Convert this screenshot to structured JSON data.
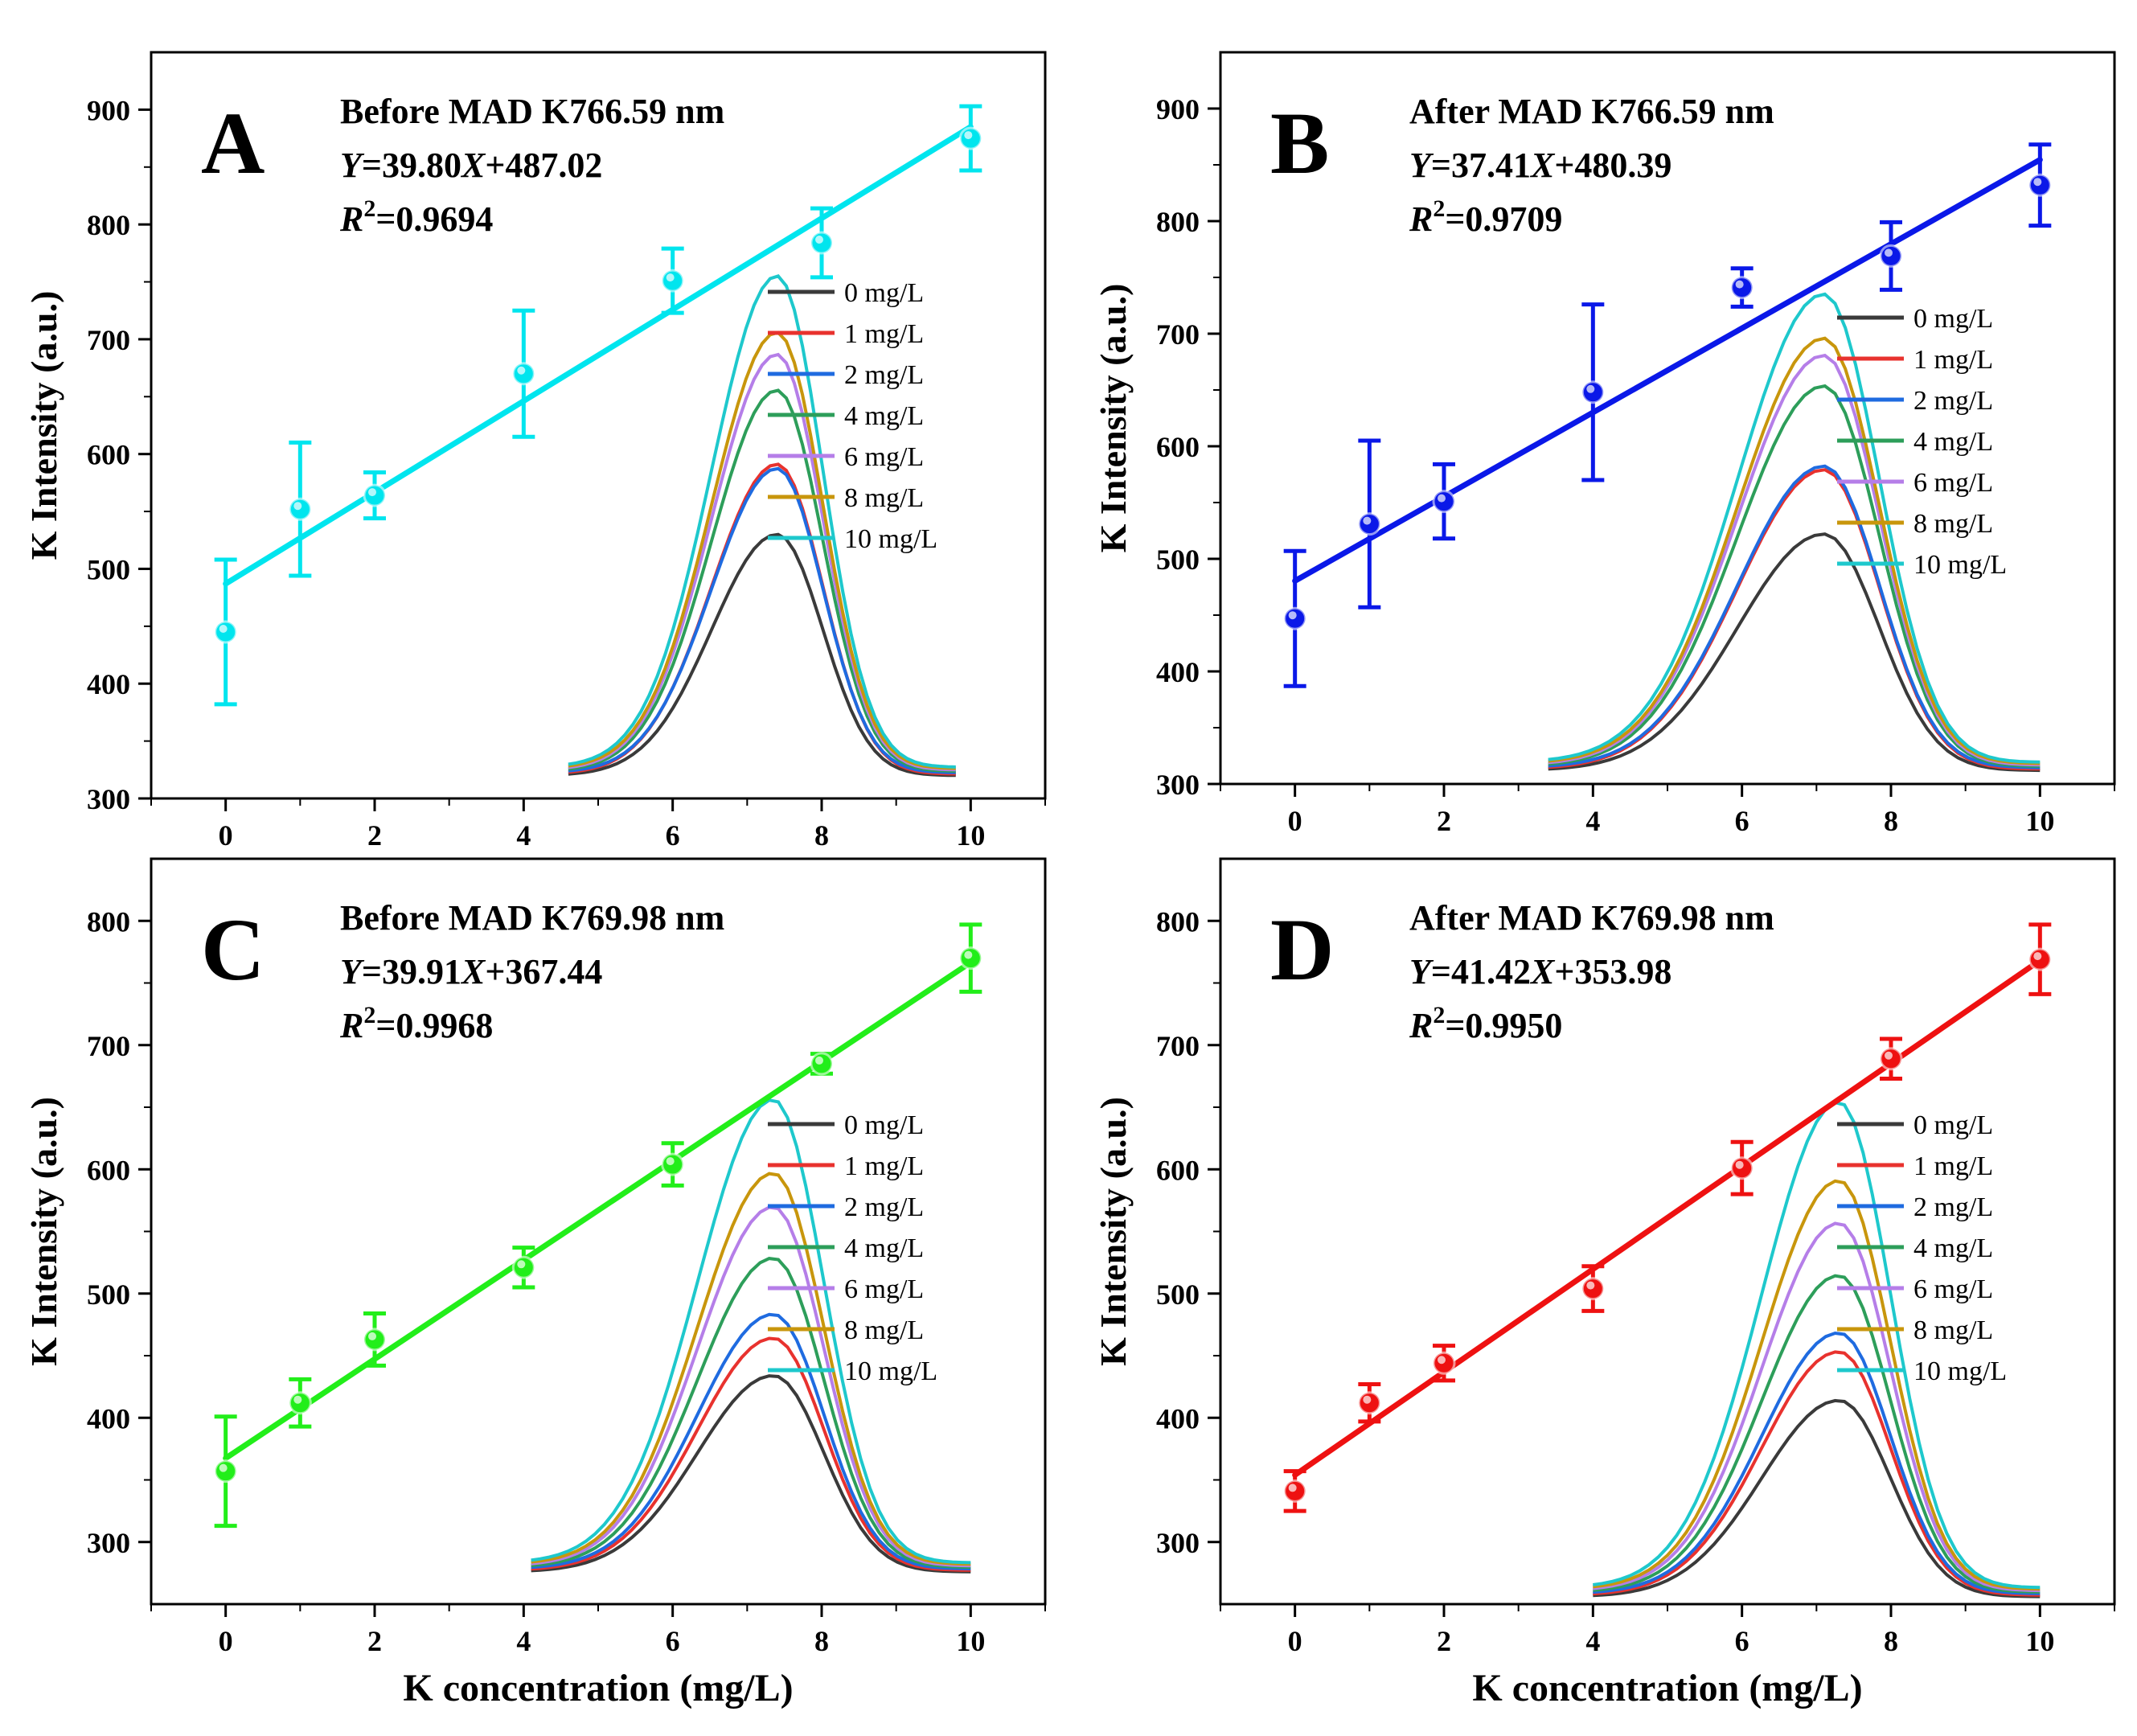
{
  "chart_data": [
    {
      "panel": "A",
      "type": "scatter",
      "title": "Before MAD K766.59 nm",
      "equation": {
        "y": "Y",
        "eq": "=39.80",
        "x": "X",
        "rest": "+487.02"
      },
      "r2": {
        "r": "R",
        "sup": "2",
        "val": "=0.9694"
      },
      "xlabel": "",
      "ylabel": "K Intensity (a.u.)",
      "xlim": [
        -1,
        11
      ],
      "ylim": [
        300,
        950
      ],
      "xticks": [
        "0",
        "2",
        "4",
        "6",
        "8",
        "10"
      ],
      "yticks": [
        "300",
        "400",
        "500",
        "600",
        "700",
        "800",
        "900"
      ],
      "color": "#00e5ee",
      "x": [
        0,
        1,
        2,
        4,
        6,
        8,
        10
      ],
      "y": [
        445,
        552,
        564,
        670,
        751,
        784,
        875
      ],
      "yerr": [
        63,
        58,
        20,
        55,
        28,
        30,
        28
      ],
      "fit": {
        "slope": 39.8,
        "intercept": 487.02
      },
      "inset": {
        "start": 4.6,
        "end": 9.8,
        "peak": 7.4,
        "base": 320
      },
      "legend": [
        "0 mg/L",
        "1 mg/L",
        "2 mg/L",
        "4 mg/L",
        "6 mg/L",
        "8 mg/L",
        "10 mg/L"
      ],
      "spectra_peaks": [
        530,
        590,
        585,
        652,
        682,
        700,
        748
      ]
    },
    {
      "panel": "B",
      "type": "scatter",
      "title": "After MAD K766.59 nm",
      "equation": {
        "y": "Y",
        "eq": "=37.41",
        "x": "X",
        "rest": "+480.39"
      },
      "r2": {
        "r": "R",
        "sup": "2",
        "val": "=0.9709"
      },
      "xlabel": "",
      "ylabel": "K Intensity (a.u.)",
      "xlim": [
        -1,
        11
      ],
      "ylim": [
        300,
        950
      ],
      "xticks": [
        "0",
        "2",
        "4",
        "6",
        "8",
        "10"
      ],
      "yticks": [
        "300",
        "400",
        "500",
        "600",
        "700",
        "800",
        "900"
      ],
      "color": "#0a18e8",
      "x": [
        0,
        1,
        2,
        4,
        6,
        8,
        10
      ],
      "y": [
        447,
        531,
        551,
        648,
        741,
        769,
        832
      ],
      "yerr": [
        60,
        74,
        33,
        78,
        17,
        30,
        36
      ],
      "fit": {
        "slope": 37.41,
        "intercept": 480.39
      },
      "inset": {
        "start": 3.4,
        "end": 10.0,
        "peak": 7.1,
        "base": 312
      },
      "legend": [
        "0 mg/L",
        "1 mg/L",
        "2 mg/L",
        "4 mg/L",
        "6 mg/L",
        "8 mg/L",
        "10 mg/L"
      ],
      "spectra_peaks": [
        522,
        578,
        580,
        650,
        676,
        690,
        728
      ]
    },
    {
      "panel": "C",
      "type": "scatter",
      "title": "Before MAD K769.98 nm",
      "equation": {
        "y": "Y",
        "eq": "=39.91",
        "x": "X",
        "rest": "+367.44"
      },
      "r2": {
        "r": "R",
        "sup": "2",
        "val": "=0.9968"
      },
      "xlabel": "K concentration (mg/L)",
      "ylabel": "K Intensity (a.u.)",
      "xlim": [
        -1,
        11
      ],
      "ylim": [
        250,
        850
      ],
      "xticks": [
        "0",
        "2",
        "4",
        "6",
        "8",
        "10"
      ],
      "yticks": [
        "300",
        "400",
        "500",
        "600",
        "700",
        "800"
      ],
      "color": "#22ee1a",
      "x": [
        0,
        1,
        2,
        4,
        6,
        8,
        10
      ],
      "y": [
        357,
        412,
        463,
        521,
        604,
        685,
        770
      ],
      "yerr": [
        44,
        19,
        21,
        16,
        17,
        8,
        27
      ],
      "fit": {
        "slope": 39.91,
        "intercept": 367.44
      },
      "inset": {
        "start": 4.1,
        "end": 10.0,
        "peak": 7.35,
        "base": 276
      },
      "legend": [
        "0 mg/L",
        "1 mg/L",
        "2 mg/L",
        "4 mg/L",
        "6 mg/L",
        "8 mg/L",
        "10 mg/L"
      ],
      "spectra_peaks": [
        434,
        463,
        481,
        525,
        565,
        591,
        649
      ]
    },
    {
      "panel": "D",
      "type": "scatter",
      "title": "After MAD K769.98 nm",
      "equation": {
        "y": "Y",
        "eq": "=41.42",
        "x": "X",
        "rest": "+353.98"
      },
      "r2": {
        "r": "R",
        "sup": "2",
        "val": "=0.9950"
      },
      "xlabel": "K concentration (mg/L)",
      "ylabel": "K Intensity (a.u.)",
      "xlim": [
        -1,
        11
      ],
      "ylim": [
        250,
        850
      ],
      "xticks": [
        "0",
        "2",
        "4",
        "6",
        "8",
        "10"
      ],
      "yticks": [
        "300",
        "400",
        "500",
        "600",
        "700",
        "800"
      ],
      "color": "#ee1111",
      "x": [
        0,
        1,
        2,
        4,
        6,
        8,
        10
      ],
      "y": [
        341,
        412,
        444,
        504,
        601,
        689,
        769
      ],
      "yerr": [
        16,
        15,
        14,
        18,
        21,
        16,
        28
      ],
      "fit": {
        "slope": 41.42,
        "intercept": 353.98
      },
      "inset": {
        "start": 4.0,
        "end": 10.0,
        "peak": 7.3,
        "base": 256
      },
      "legend": [
        "0 mg/L",
        "1 mg/L",
        "2 mg/L",
        "4 mg/L",
        "6 mg/L",
        "8 mg/L",
        "10 mg/L"
      ],
      "spectra_peaks": [
        414,
        452,
        466,
        511,
        552,
        585,
        647
      ]
    }
  ],
  "legend_colors": [
    "#3a3a3a",
    "#e8322e",
    "#1f6be0",
    "#2d9e5a",
    "#b57ee8",
    "#c8960c",
    "#1ec8cc"
  ]
}
